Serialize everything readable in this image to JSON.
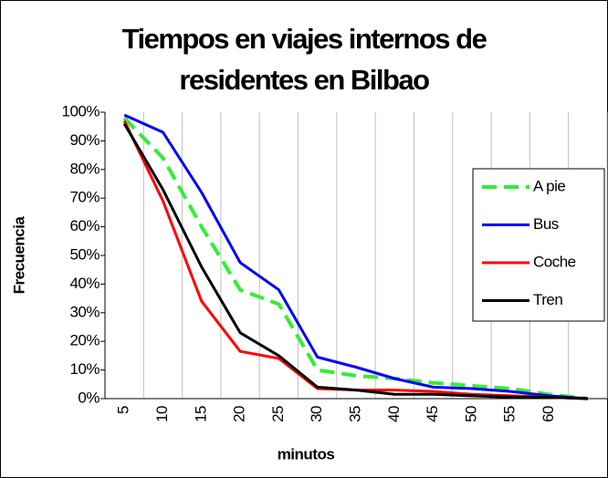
{
  "chart_data": {
    "type": "line",
    "title": [
      "Tiempos en  viajes internos de",
      "residentes en Bilbao"
    ],
    "x_label": "minutos",
    "y_label": "Frecuencia",
    "categories": [
      "5",
      "10",
      "15",
      "20",
      "25",
      "30",
      "35",
      "40",
      "45",
      "50",
      "55",
      "60",
      null
    ],
    "series": [
      {
        "name": "A pie",
        "color": "#33ee33",
        "dashed": true,
        "values": [
          98,
          84,
          60,
          38,
          33,
          10,
          8,
          7,
          5.5,
          4.5,
          3.5,
          1.5,
          0
        ]
      },
      {
        "name": "Bus",
        "color": "#0000ff",
        "values": [
          99,
          93,
          72,
          47.5,
          38,
          14.5,
          11,
          7,
          4,
          3.5,
          2.5,
          1,
          0
        ]
      },
      {
        "name": "Coche",
        "color": "#ff0000",
        "values": [
          97,
          69,
          34,
          16.5,
          14,
          3.5,
          3,
          3,
          2.5,
          1.5,
          1,
          0.5,
          0
        ]
      },
      {
        "name": "Tren",
        "color": "#000000",
        "values": [
          96,
          73,
          46,
          23,
          15,
          4,
          3,
          1.5,
          1.5,
          1,
          0.5,
          0.5,
          0
        ]
      }
    ],
    "ylim": [
      0,
      100
    ],
    "yticks": [
      {
        "value": 0,
        "label": "0%"
      },
      {
        "value": 10,
        "label": "10%"
      },
      {
        "value": 20,
        "label": "20%"
      },
      {
        "value": 30,
        "label": "30%"
      },
      {
        "value": 40,
        "label": "40%"
      },
      {
        "value": 50,
        "label": "50%"
      },
      {
        "value": 60,
        "label": "60%"
      },
      {
        "value": 70,
        "label": "70%"
      },
      {
        "value": 80,
        "label": "80%"
      },
      {
        "value": 90,
        "label": "90%"
      },
      {
        "value": 100,
        "label": "100%"
      }
    ],
    "grid": true,
    "legend": "right"
  }
}
